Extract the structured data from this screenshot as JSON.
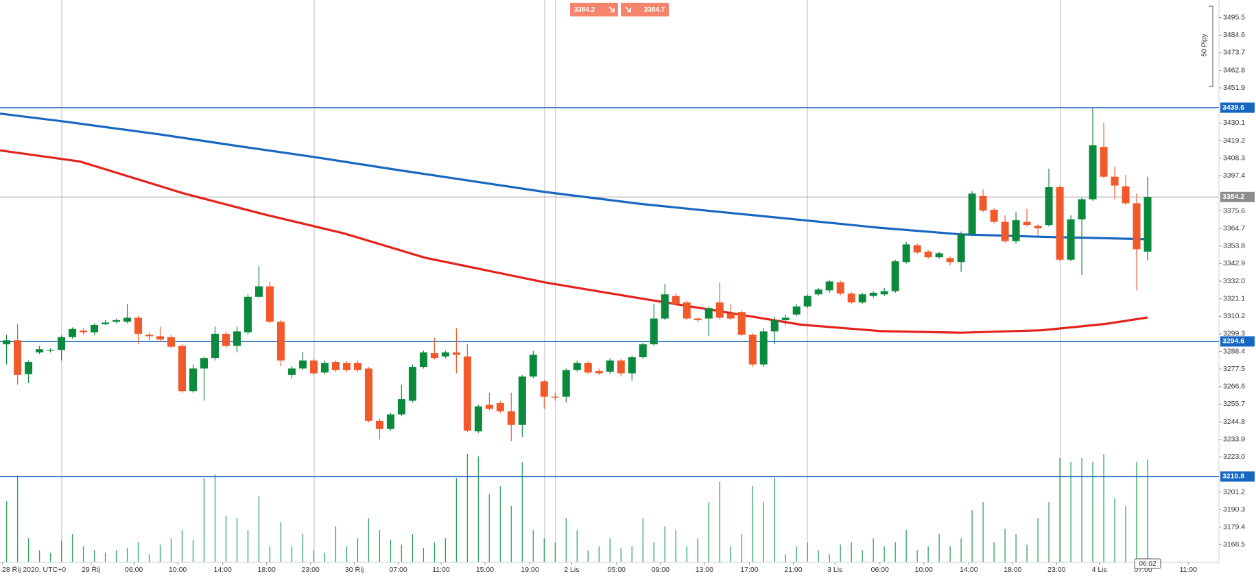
{
  "chart_data": {
    "type": "candlestick",
    "x": [
      0,
      1,
      2,
      3,
      4,
      5,
      6,
      7,
      8,
      9,
      10,
      11,
      12,
      13,
      14,
      15,
      16,
      17,
      18,
      19,
      20,
      21,
      22,
      23,
      24,
      25,
      26,
      27,
      28,
      29,
      30,
      31,
      32,
      33,
      34,
      35,
      36,
      37,
      38,
      39,
      40,
      41,
      42,
      43,
      44,
      45,
      46,
      47,
      48,
      49,
      50,
      51,
      52,
      53,
      54,
      55,
      56,
      57,
      58,
      59,
      60,
      61,
      62,
      63,
      64,
      65,
      66,
      67,
      68,
      69,
      70,
      71,
      72,
      73,
      74,
      75,
      76,
      77,
      78,
      79,
      80,
      81,
      82,
      83,
      84,
      85,
      86,
      87,
      88,
      89,
      90,
      91,
      92,
      93,
      94,
      95,
      96,
      97,
      98,
      99,
      100,
      101,
      102,
      103,
      104
    ],
    "open": [
      3292.8,
      3295.3,
      3274.3,
      3287.8,
      3288.8,
      3289.3,
      3297.3,
      3301.3,
      3300.3,
      3305.3,
      3306.8,
      3306.8,
      3309.3,
      3298.8,
      3297.8,
      3297.3,
      3291.8,
      3263.8,
      3277.8,
      3284.3,
      3299.3,
      3291.8,
      3300.3,
      3322.3,
      3328.8,
      3306.8,
      3273.8,
      3277.8,
      3282.8,
      3275.3,
      3281.8,
      3281.3,
      3281.3,
      3277.8,
      3245.3,
      3240.3,
      3249.3,
      3257.8,
      3278.8,
      3287.3,
      3285.3,
      3287.8,
      3285.3,
      3238.8,
      3255.3,
      3256.3,
      3251.3,
      3242.8,
      3272.8,
      3269.8,
      3260.3,
      3260.3,
      3276.8,
      3281.3,
      3276.3,
      3275.8,
      3282.8,
      3274.8,
      3284.8,
      3292.8,
      3308.8,
      3322.8,
      3318.8,
      3308.8,
      3308.8,
      3318.8,
      3311.8,
      3312.8,
      3298.8,
      3280.3,
      3300.8,
      3307.8,
      3311.3,
      3316.3,
      3323.8,
      3326.3,
      3331.3,
      3324.3,
      3318.8,
      3322.8,
      3323.8,
      3325.8,
      3343.8,
      3354.3,
      3350.3,
      3346.8,
      3346.3,
      3343.8,
      3361.3,
      3384.8,
      3376.3,
      3368.8,
      3356.8,
      3368.8,
      3366.3,
      3366.8,
      3390.3,
      3345.3,
      3370.3,
      3382.8,
      3415.3,
      3396.8,
      3390.8,
      3380.3,
      3350.3
    ],
    "high": [
      3298.8,
      3305.3,
      3282.8,
      3291.8,
      3290.3,
      3298.3,
      3303.3,
      3302.8,
      3305.8,
      3307.8,
      3308.8,
      3317.8,
      3310.3,
      3300.3,
      3303.8,
      3298.8,
      3292.8,
      3280.3,
      3285.3,
      3303.8,
      3300.8,
      3303.8,
      3323.8,
      3341.3,
      3331.8,
      3307.8,
      3279.3,
      3287.8,
      3283.8,
      3282.8,
      3282.8,
      3282.3,
      3282.8,
      3278.8,
      3246.8,
      3250.3,
      3267.8,
      3280.3,
      3288.8,
      3296.8,
      3288.8,
      3302.8,
      3292.8,
      3255.3,
      3262.8,
      3257.8,
      3262.8,
      3273.8,
      3288.8,
      3270.8,
      3262.8,
      3277.8,
      3282.8,
      3282.3,
      3277.8,
      3284.3,
      3283.8,
      3285.8,
      3293.8,
      3317.8,
      3330.3,
      3324.3,
      3319.8,
      3309.8,
      3316.3,
      3331.3,
      3317.8,
      3313.8,
      3299.8,
      3302.8,
      3309.8,
      3311.3,
      3317.8,
      3323.8,
      3327.8,
      3332.8,
      3332.3,
      3325.3,
      3324.8,
      3325.8,
      3327.8,
      3345.3,
      3356.3,
      3355.3,
      3351.3,
      3350.3,
      3347.3,
      3362.8,
      3387.8,
      3388.8,
      3377.3,
      3372.8,
      3374.8,
      3376.8,
      3367.3,
      3401.8,
      3391.3,
      3372.8,
      3383.8,
      3439.3,
      3430.3,
      3402.8,
      3397.8,
      3386.3,
      3396.8
    ],
    "low": [
      3280.3,
      3267.8,
      3268.8,
      3286.8,
      3287.8,
      3282.8,
      3296.3,
      3298.8,
      3298.8,
      3304.8,
      3305.8,
      3305.8,
      3292.8,
      3295.3,
      3294.3,
      3290.3,
      3262.8,
      3262.8,
      3257.8,
      3282.8,
      3290.8,
      3287.8,
      3298.8,
      3321.8,
      3305.8,
      3279.3,
      3271.8,
      3276.8,
      3273.8,
      3274.3,
      3275.8,
      3275.8,
      3275.8,
      3244.3,
      3233.8,
      3239.3,
      3248.3,
      3256.8,
      3277.8,
      3283.3,
      3284.3,
      3274.8,
      3238.3,
      3237.8,
      3251.8,
      3250.3,
      3232.8,
      3235.3,
      3271.8,
      3252.8,
      3257.8,
      3256.8,
      3275.8,
      3274.3,
      3273.8,
      3274.3,
      3272.8,
      3270.3,
      3283.8,
      3291.8,
      3307.8,
      3316.8,
      3307.8,
      3306.8,
      3297.8,
      3308.3,
      3307.8,
      3297.8,
      3278.8,
      3278.8,
      3292.8,
      3304.8,
      3310.3,
      3315.3,
      3322.8,
      3324.8,
      3323.3,
      3317.8,
      3317.8,
      3321.8,
      3322.8,
      3324.8,
      3342.8,
      3348.8,
      3345.8,
      3345.8,
      3341.8,
      3337.8,
      3359.8,
      3374.8,
      3367.8,
      3355.8,
      3355.3,
      3365.8,
      3360.3,
      3365.8,
      3344.3,
      3344.3,
      3335.8,
      3381.8,
      3395.8,
      3382.8,
      3379.3,
      3326.3,
      3344.8
    ],
    "close": [
      3295.3,
      3273.8,
      3281.8,
      3289.8,
      3289.3,
      3297.3,
      3302.3,
      3300.3,
      3304.8,
      3306.3,
      3307.8,
      3309.3,
      3299.3,
      3297.8,
      3295.8,
      3291.3,
      3263.8,
      3277.8,
      3284.3,
      3299.3,
      3291.8,
      3300.8,
      3322.3,
      3328.8,
      3306.8,
      3282.8,
      3277.8,
      3282.8,
      3274.8,
      3281.3,
      3276.8,
      3276.8,
      3276.8,
      3245.3,
      3240.3,
      3249.3,
      3258.8,
      3278.8,
      3287.8,
      3284.3,
      3287.8,
      3286.3,
      3239.3,
      3254.3,
      3252.8,
      3251.3,
      3242.8,
      3272.8,
      3286.3,
      3260.3,
      3259.8,
      3276.8,
      3281.3,
      3275.3,
      3274.8,
      3282.8,
      3274.8,
      3284.8,
      3292.8,
      3308.8,
      3323.8,
      3317.8,
      3308.8,
      3307.8,
      3315.3,
      3309.3,
      3308.8,
      3298.8,
      3280.3,
      3300.8,
      3307.8,
      3309.3,
      3316.3,
      3322.8,
      3326.8,
      3331.8,
      3324.3,
      3318.8,
      3323.8,
      3324.8,
      3325.8,
      3344.3,
      3354.8,
      3349.8,
      3346.8,
      3349.3,
      3343.8,
      3361.3,
      3386.3,
      3375.8,
      3368.8,
      3356.8,
      3369.8,
      3366.8,
      3364.8,
      3390.3,
      3345.3,
      3370.3,
      3382.8,
      3416.3,
      3396.8,
      3391.3,
      3380.3,
      3351.8,
      3384.2
    ],
    "volume": [
      76,
      108,
      30,
      15,
      12,
      27,
      35,
      20,
      15,
      12,
      15,
      18,
      25,
      10,
      22,
      30,
      40,
      28,
      105,
      110,
      58,
      55,
      40,
      82,
      20,
      50,
      20,
      35,
      15,
      12,
      45,
      20,
      30,
      55,
      40,
      28,
      22,
      35,
      18,
      25,
      30,
      105,
      135,
      132,
      85,
      95,
      70,
      125,
      40,
      30,
      25,
      55,
      40,
      15,
      20,
      30,
      18,
      20,
      55,
      25,
      45,
      40,
      20,
      30,
      75,
      100,
      20,
      35,
      95,
      75,
      105,
      10,
      20,
      25,
      15,
      10,
      22,
      25,
      15,
      30,
      20,
      25,
      40,
      15,
      20,
      35,
      20,
      30,
      65,
      75,
      25,
      42,
      35,
      22,
      55,
      75,
      130,
      125,
      130,
      125,
      135,
      80,
      70,
      125,
      128
    ],
    "colors": {
      "up": "#0b8a3e",
      "down": "#f1582a",
      "volume": "#2aa35a"
    },
    "moving_averages": [
      {
        "color": "#1766c2",
        "x": [
          -0.6,
          5.3,
          14,
          21.3,
          27.9,
          35.9,
          43.2,
          49.1,
          57.8,
          63.6,
          72.4,
          79.7,
          87,
          94.3,
          104
        ],
        "values": [
          3435.9,
          3431.0,
          3423.0,
          3415.6,
          3409.1,
          3400.7,
          3393.3,
          3387.3,
          3379.9,
          3375.9,
          3370.0,
          3365.0,
          3361.0,
          3359.5,
          3358.0
        ]
      },
      {
        "color": "#e4221b",
        "x": [
          -0.6,
          6.7,
          16.2,
          23.5,
          30.8,
          38.1,
          49.1,
          57.8,
          63.6,
          72.4,
          79.7,
          87,
          94.3,
          100.1,
          104
        ],
        "values": [
          3413.1,
          3406.2,
          3386.3,
          3373.4,
          3361.5,
          3346.6,
          3331.2,
          3321.3,
          3314.9,
          3305.0,
          3301.0,
          3300.0,
          3301.5,
          3305.4,
          3309.4
        ]
      }
    ],
    "xlim": [
      -0.6,
      110.5
    ],
    "ylim": [
      3157.6,
      3506.4
    ],
    "yticks": [
      3495.5,
      3484.6,
      3473.7,
      3462.8,
      3451.9,
      3430.1,
      3419.2,
      3408.3,
      3397.4,
      3375.6,
      3364.7,
      3353.8,
      3342.9,
      {
        "value": 3332,
        "label": "3332.0"
      },
      3321.1,
      3310.2,
      3299.3,
      3288.4,
      3277.5,
      3266.6,
      3255.7,
      3244.8,
      3233.9,
      {
        "value": 3223,
        "label": "3223.0"
      },
      3201.2,
      3190.3,
      3179.4,
      3168.5
    ],
    "xticks": [
      {
        "value": -0.4,
        "label": "28 Říj 2020, UTC+0"
      },
      {
        "value": 7.7,
        "label": "29 Říj"
      },
      {
        "value": 11.6,
        "label": "06:00"
      },
      {
        "value": 15.6,
        "label": "10:00"
      },
      {
        "value": 19.7,
        "label": "14:00"
      },
      {
        "value": 23.7,
        "label": "18:00"
      },
      {
        "value": 27.7,
        "label": "23:00"
      },
      {
        "value": 31.7,
        "label": "30 Říj"
      },
      {
        "value": 35.7,
        "label": "07:00"
      },
      {
        "value": 39.6,
        "label": "11:00"
      },
      {
        "value": 43.6,
        "label": "15:00"
      },
      {
        "value": 47.7,
        "label": "19:00"
      },
      {
        "value": 51.5,
        "label": "2 Lis"
      },
      {
        "value": 55.6,
        "label": "05:00"
      },
      {
        "value": 59.6,
        "label": "09:00"
      },
      {
        "value": 63.6,
        "label": "13:00"
      },
      {
        "value": 67.7,
        "label": "17:00"
      },
      {
        "value": 71.7,
        "label": "21:00"
      },
      {
        "value": 75.5,
        "label": "3 Lis"
      },
      {
        "value": 79.6,
        "label": "06:00"
      },
      {
        "value": 83.6,
        "label": "10:00"
      },
      {
        "value": 87.7,
        "label": "14:00"
      },
      {
        "value": 91.7,
        "label": "18:00"
      },
      {
        "value": 95.7,
        "label": "23:00"
      },
      {
        "value": 99.6,
        "label": "4 Lis"
      },
      {
        "value": 103.6,
        "label": "07:00"
      },
      {
        "value": 107.7,
        "label": "11:00"
      }
    ],
    "price_lines": [
      3439.6,
      3294.6,
      3210.8
    ],
    "current_price": 3384.2,
    "bid": 3384.2,
    "ask": 3384.7,
    "scale_label": "50 Pipy",
    "countdown": "06:02"
  }
}
